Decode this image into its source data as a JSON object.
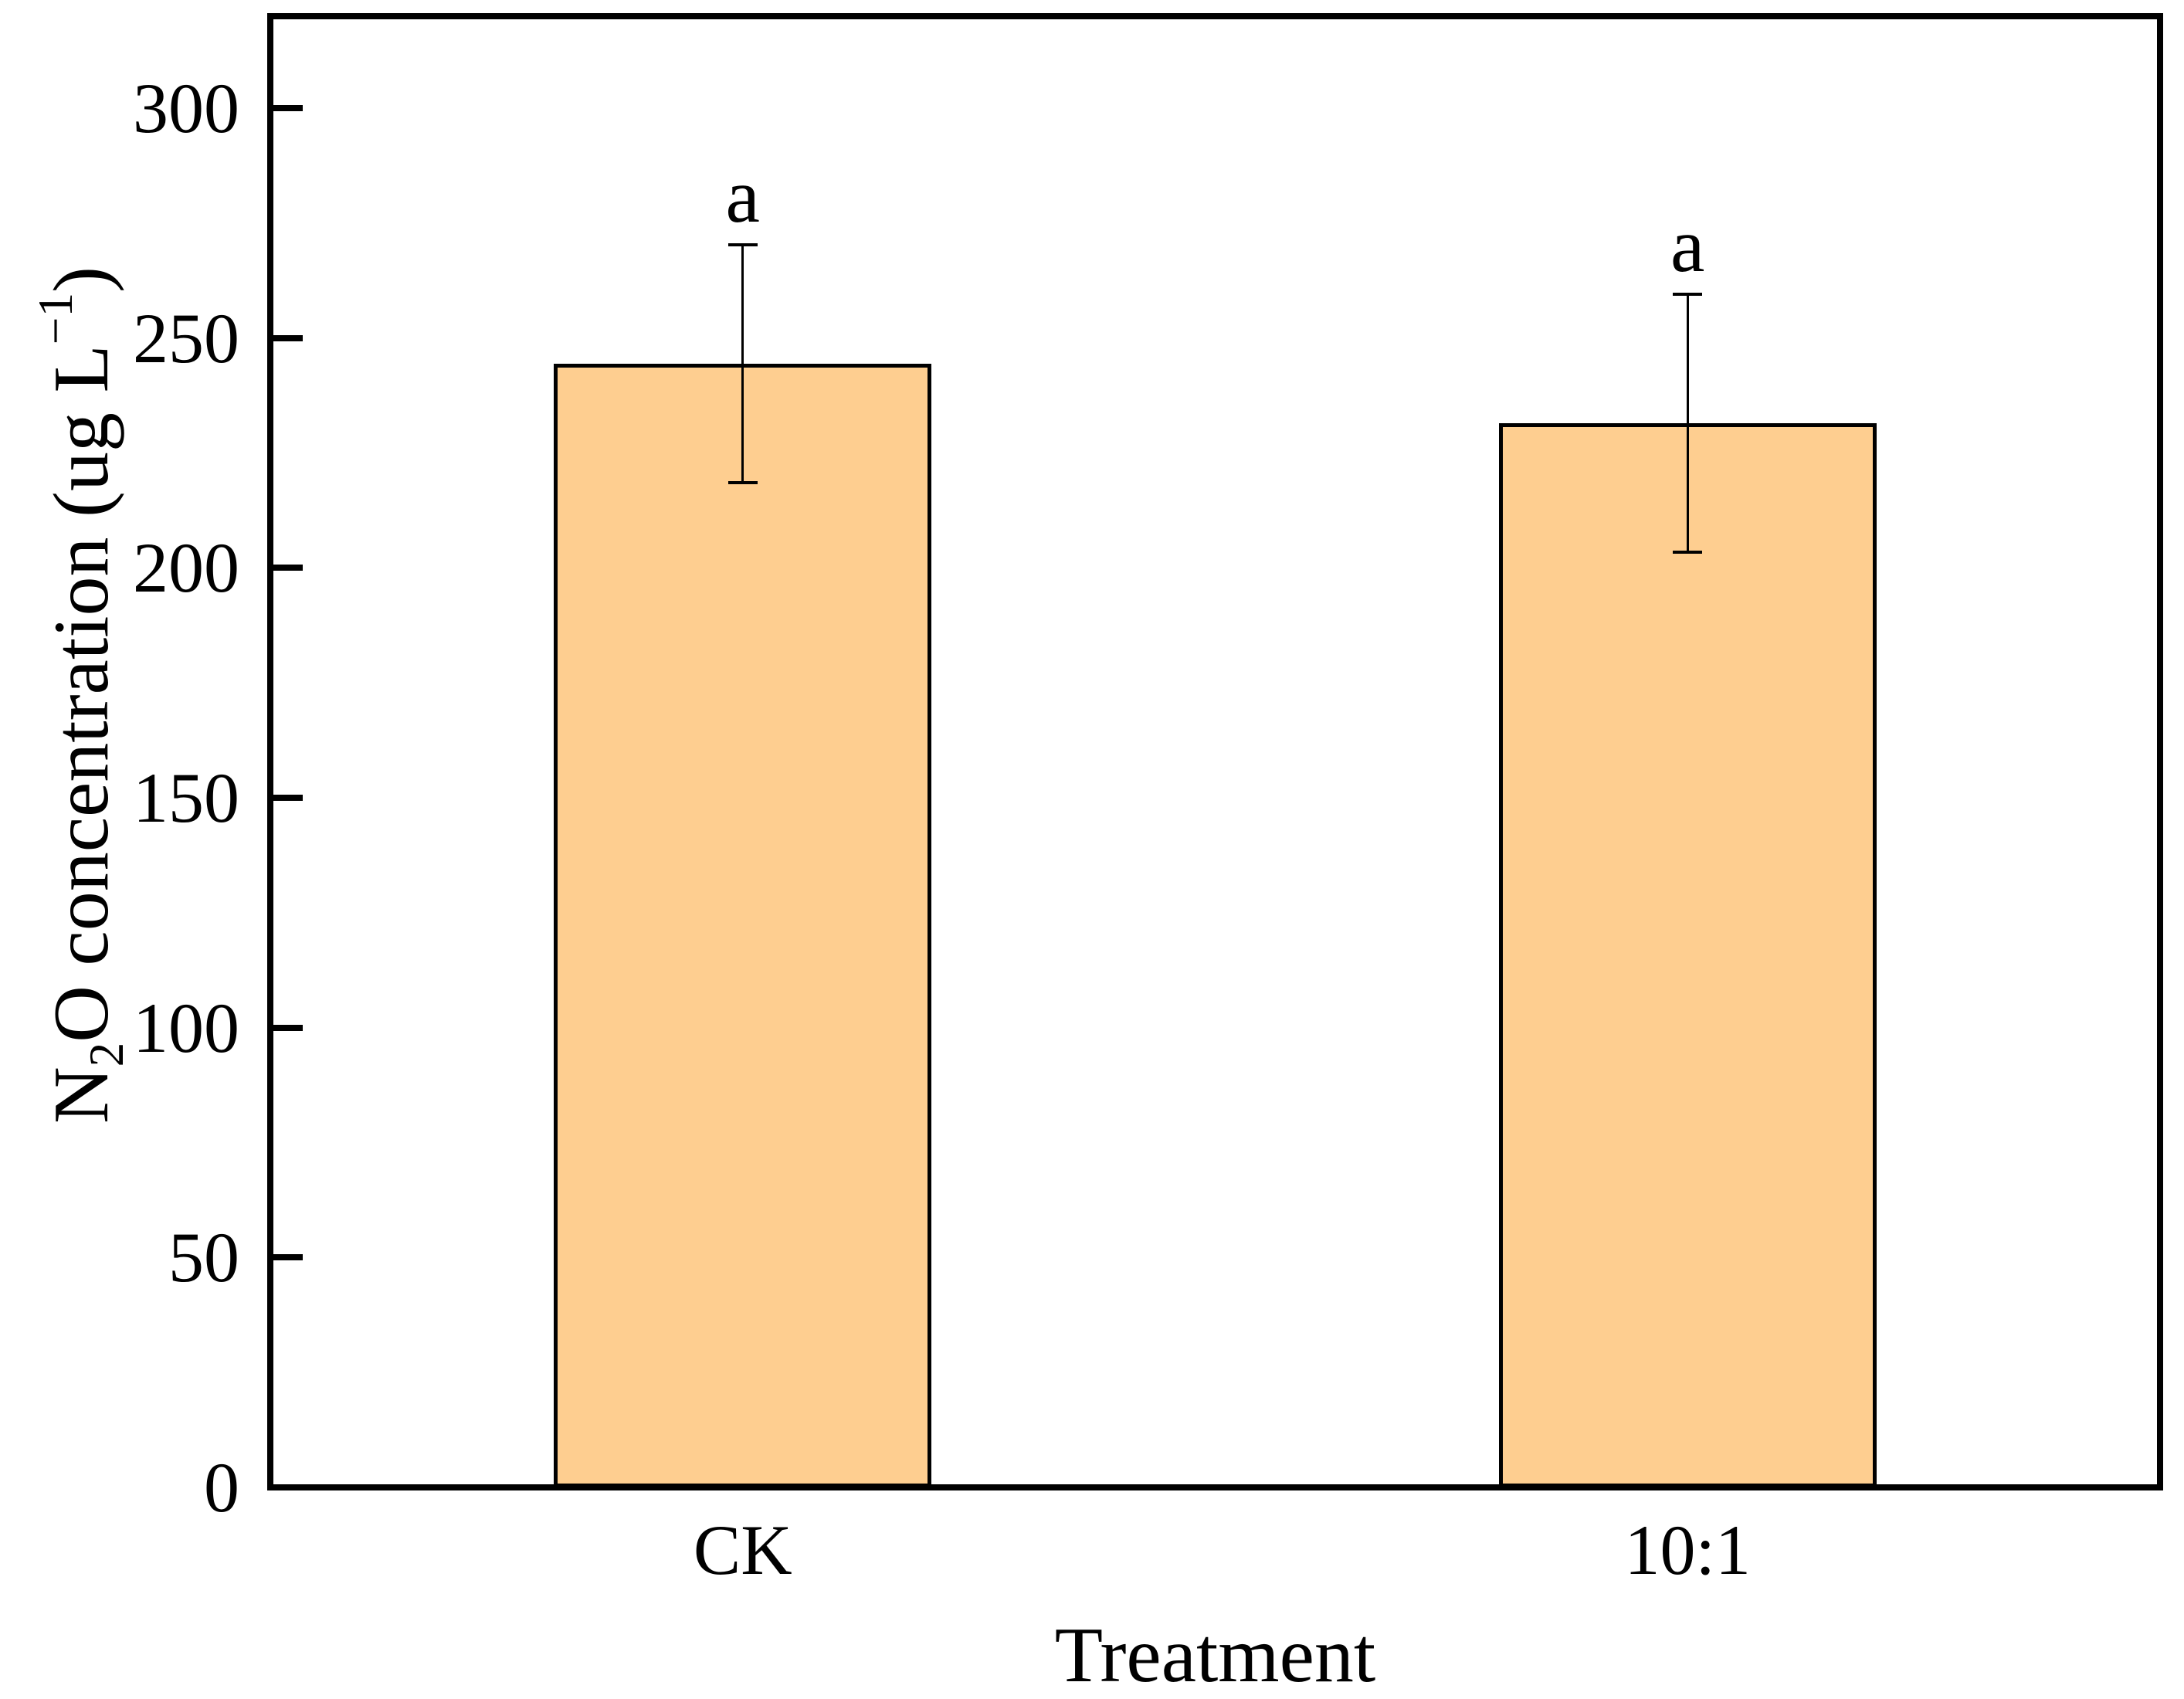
{
  "chart_data": {
    "type": "bar",
    "title": "",
    "xlabel": "Treatment",
    "ylabel_plain": "N2O concentration (ug L-1)",
    "ylabel_parts": {
      "pre": "N",
      "sub": "2",
      "mid": "O concentration (ug L",
      "sup": "−1",
      "post": ")"
    },
    "categories": [
      "CK",
      "10:1"
    ],
    "series": [
      {
        "name": "N2O concentration",
        "values": [
          244.4,
          231.5
        ],
        "errors": [
          25.8,
          28.0
        ]
      }
    ],
    "sig_letters": [
      "a",
      "a"
    ],
    "ylim": [
      0,
      320
    ],
    "yticks": [
      0,
      50,
      100,
      150,
      200,
      250,
      300
    ],
    "grid": false,
    "legend_position": null,
    "bar_color": "#FECE90",
    "bar_border_color": "#000000",
    "axis_color": "#000000",
    "background_color": "#FFFFFF"
  }
}
